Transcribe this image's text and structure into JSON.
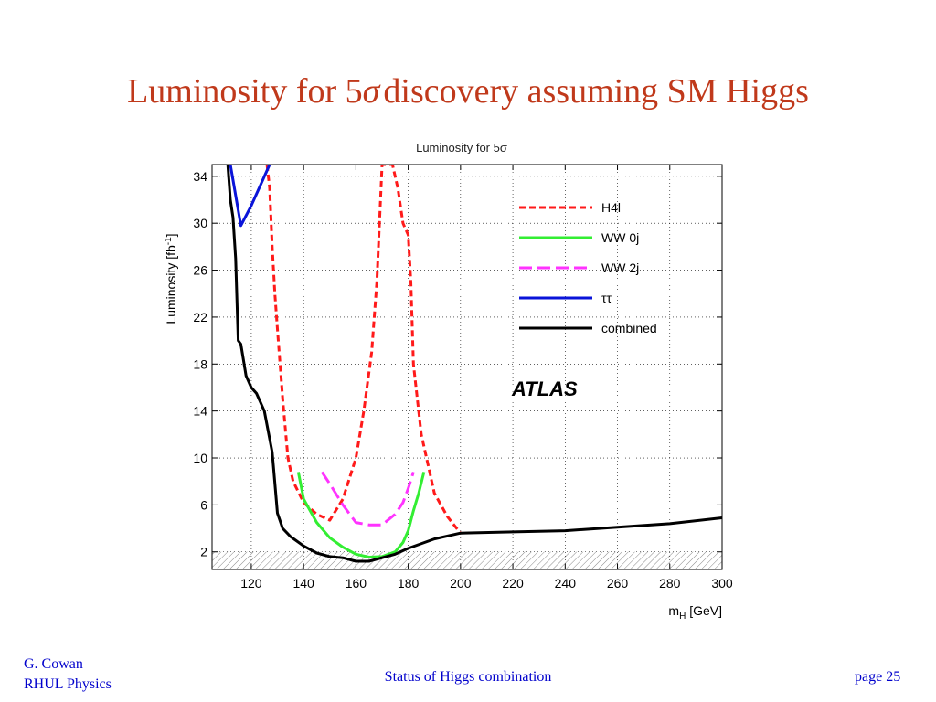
{
  "slide": {
    "title_pre": "Luminosity for 5",
    "title_sigma": "σ",
    "title_post": "discovery assuming SM Higgs"
  },
  "footer": {
    "author_line1": "G. Cowan",
    "author_line2": "RHUL Physics",
    "center": "Status of Higgs combination",
    "page": "page 25"
  },
  "chart_data": {
    "type": "line",
    "title": "Luminosity for 5σ",
    "xlabel": "m",
    "xlabel_sub": "H",
    "xlabel_unit": " [GeV]",
    "ylabel": "Luminosity [fb",
    "ylabel_sup": "-1",
    "ylabel_end": "]",
    "xlim": [
      105,
      300
    ],
    "ylim": [
      0.5,
      35
    ],
    "xticks": [
      120,
      140,
      160,
      180,
      200,
      220,
      240,
      260,
      280,
      300
    ],
    "yticks": [
      2,
      6,
      10,
      14,
      18,
      22,
      26,
      30,
      34
    ],
    "hatched_band": [
      0.5,
      2.0
    ],
    "annotation": "ATLAS",
    "legend_position": "top-right",
    "colors": {
      "H4l": "#ff1a1a",
      "WW0j": "#33ee33",
      "WW2j": "#ff33ff",
      "tautau": "#0a14d9",
      "combined": "#000000"
    },
    "series": [
      {
        "name": "H4l",
        "color": "#ff1a1a",
        "dash": "7,4",
        "x": [
          126,
          127,
          128,
          129,
          130,
          131,
          132,
          134,
          136,
          140,
          145,
          150,
          155,
          160,
          163,
          166,
          168,
          170,
          172,
          174,
          176,
          178,
          180,
          181,
          182,
          185,
          190,
          195,
          200
        ],
        "y": [
          35,
          33,
          28,
          24,
          21,
          18,
          15,
          10,
          8,
          6.2,
          5.2,
          4.7,
          6.5,
          10,
          14,
          19,
          25,
          35,
          35,
          35,
          33,
          30,
          29,
          25,
          18,
          12,
          7,
          5,
          3.6
        ]
      },
      {
        "name": "WW 0j",
        "color": "#33ee33",
        "dash": "",
        "x": [
          138,
          140,
          145,
          150,
          155,
          160,
          165,
          170,
          175,
          178,
          180,
          182,
          184,
          186
        ],
        "y": [
          8.8,
          6.5,
          4.5,
          3.2,
          2.4,
          1.8,
          1.55,
          1.6,
          2.0,
          2.8,
          3.8,
          5.5,
          7.0,
          8.8
        ]
      },
      {
        "name": "WW 2j",
        "color": "#ff33ff",
        "dash": "14,6",
        "x": [
          147,
          150,
          155,
          160,
          165,
          170,
          175,
          178,
          180,
          182
        ],
        "y": [
          8.8,
          7.8,
          6.0,
          4.5,
          4.3,
          4.3,
          5.2,
          6.2,
          7.4,
          8.8
        ]
      },
      {
        "name": "ττ",
        "color": "#0a14d9",
        "dash": "",
        "x": [
          112,
          116,
          120,
          124,
          127
        ],
        "y": [
          35,
          29.8,
          31.5,
          33.5,
          35
        ]
      },
      {
        "name": "combined",
        "color": "#000000",
        "dash": "",
        "x": [
          111,
          112,
          113,
          114,
          115,
          116,
          118,
          120,
          122,
          125,
          128,
          130,
          132,
          135,
          140,
          145,
          150,
          155,
          160,
          165,
          170,
          175,
          180,
          190,
          200,
          220,
          240,
          260,
          280,
          300
        ],
        "y": [
          35,
          32,
          30.5,
          27,
          20,
          19.7,
          17,
          16,
          15.5,
          14,
          10.5,
          5.3,
          4.0,
          3.3,
          2.5,
          1.9,
          1.6,
          1.5,
          1.2,
          1.2,
          1.5,
          1.8,
          2.3,
          3.1,
          3.6,
          3.7,
          3.8,
          4.1,
          4.4,
          4.9
        ]
      }
    ]
  }
}
